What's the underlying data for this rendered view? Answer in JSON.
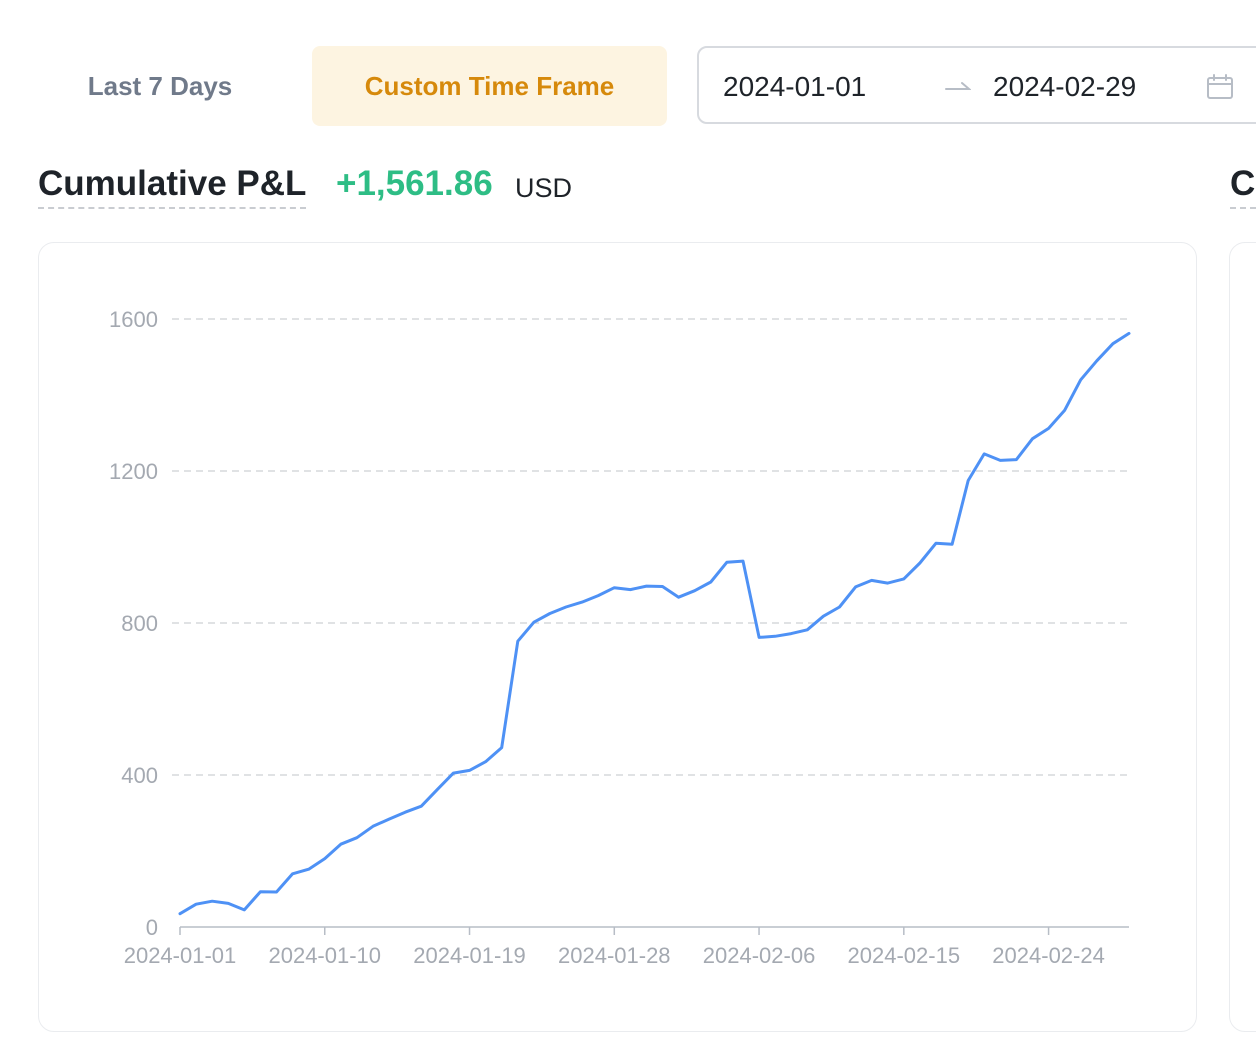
{
  "tabs": {
    "last7_label": "Last 7 Days",
    "custom_label": "Custom Time Frame"
  },
  "date_range": {
    "start": "2024-01-01",
    "end": "2024-02-29",
    "arrow_icon": "arrow-right-icon",
    "calendar_icon": "calendar-icon"
  },
  "pnl": {
    "title": "Cumulative P&L",
    "value": "+1,561.86",
    "unit": "USD",
    "value_color": "#2ebd85",
    "next_title": "Cumulative P&L"
  },
  "colors": {
    "accent": "#d6890b",
    "accent_bg": "#fdf4e1",
    "line": "#4e91f5"
  },
  "chart_data": {
    "type": "line",
    "title": "",
    "xlabel": "",
    "ylabel": "",
    "ylim": [
      0,
      1600
    ],
    "xlim": [
      "2024-01-01",
      "2024-02-29"
    ],
    "grid": true,
    "y_ticks": [
      0,
      400,
      800,
      1200,
      1600
    ],
    "x_ticks": [
      "2024-01-01",
      "2024-01-10",
      "2024-01-19",
      "2024-01-28",
      "2024-02-06",
      "2024-02-15",
      "2024-02-24"
    ],
    "series": [
      {
        "color": "#4e91f5",
        "points": [
          [
            "2024-01-01",
            35
          ],
          [
            "2024-01-02",
            60
          ],
          [
            "2024-01-03",
            68
          ],
          [
            "2024-01-04",
            62
          ],
          [
            "2024-01-05",
            45
          ],
          [
            "2024-01-06",
            93
          ],
          [
            "2024-01-07",
            92
          ],
          [
            "2024-01-08",
            140
          ],
          [
            "2024-01-09",
            152
          ],
          [
            "2024-01-10",
            180
          ],
          [
            "2024-01-11",
            218
          ],
          [
            "2024-01-12",
            235
          ],
          [
            "2024-01-13",
            265
          ],
          [
            "2024-01-14",
            284
          ],
          [
            "2024-01-15",
            302
          ],
          [
            "2024-01-16",
            318
          ],
          [
            "2024-01-17",
            362
          ],
          [
            "2024-01-18",
            405
          ],
          [
            "2024-01-19",
            412
          ],
          [
            "2024-01-20",
            435
          ],
          [
            "2024-01-21",
            472
          ],
          [
            "2024-01-22",
            752
          ],
          [
            "2024-01-23",
            802
          ],
          [
            "2024-01-24",
            825
          ],
          [
            "2024-01-25",
            842
          ],
          [
            "2024-01-26",
            855
          ],
          [
            "2024-01-27",
            872
          ],
          [
            "2024-01-28",
            893
          ],
          [
            "2024-01-29",
            888
          ],
          [
            "2024-01-30",
            897
          ],
          [
            "2024-01-31",
            896
          ],
          [
            "2024-02-01",
            868
          ],
          [
            "2024-02-02",
            885
          ],
          [
            "2024-02-03",
            908
          ],
          [
            "2024-02-04",
            960
          ],
          [
            "2024-02-05",
            963
          ],
          [
            "2024-02-06",
            762
          ],
          [
            "2024-02-07",
            765
          ],
          [
            "2024-02-08",
            772
          ],
          [
            "2024-02-09",
            782
          ],
          [
            "2024-02-10",
            818
          ],
          [
            "2024-02-11",
            842
          ],
          [
            "2024-02-12",
            895
          ],
          [
            "2024-02-13",
            912
          ],
          [
            "2024-02-14",
            905
          ],
          [
            "2024-02-15",
            916
          ],
          [
            "2024-02-16",
            958
          ],
          [
            "2024-02-17",
            1010
          ],
          [
            "2024-02-18",
            1007
          ],
          [
            "2024-02-19",
            1175
          ],
          [
            "2024-02-20",
            1245
          ],
          [
            "2024-02-21",
            1228
          ],
          [
            "2024-02-22",
            1230
          ],
          [
            "2024-02-23",
            1285
          ],
          [
            "2024-02-24",
            1312
          ],
          [
            "2024-02-25",
            1360
          ],
          [
            "2024-02-26",
            1440
          ],
          [
            "2024-02-27",
            1490
          ],
          [
            "2024-02-28",
            1535
          ],
          [
            "2024-02-29",
            1562
          ]
        ]
      }
    ]
  }
}
